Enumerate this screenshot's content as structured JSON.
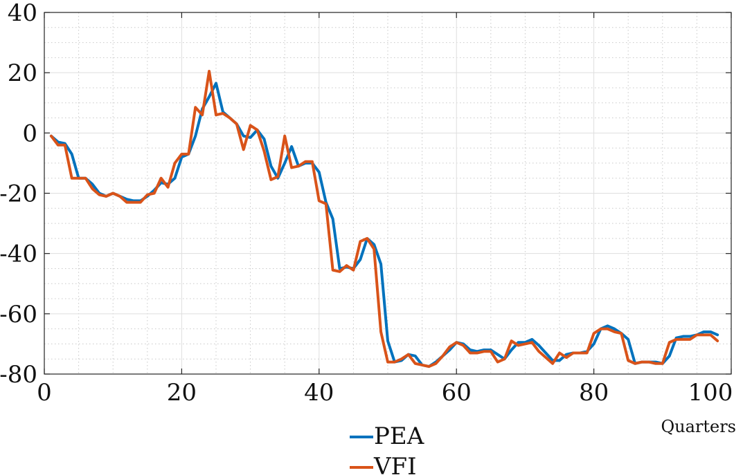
{
  "chart_data": {
    "type": "line",
    "xlabel": "Quarters",
    "ylabel": "",
    "xlim": [
      0,
      100
    ],
    "ylim": [
      -80,
      40
    ],
    "xticks": [
      0,
      20,
      40,
      60,
      80,
      100
    ],
    "yticks": [
      40,
      20,
      0,
      -20,
      -40,
      -60,
      -80
    ],
    "xtick_labels": [
      "0",
      "20",
      "40",
      "60",
      "80",
      "100"
    ],
    "ytick_labels": [
      "40",
      "20",
      "0",
      "-20",
      "-40",
      "-60",
      "-80"
    ],
    "grid": true,
    "legend_position": "bottom-center",
    "x": [
      1,
      2,
      3,
      4,
      5,
      6,
      7,
      8,
      9,
      10,
      11,
      12,
      13,
      14,
      15,
      16,
      17,
      18,
      19,
      20,
      21,
      22,
      23,
      24,
      25,
      26,
      27,
      28,
      29,
      30,
      31,
      32,
      33,
      34,
      35,
      36,
      37,
      38,
      39,
      40,
      41,
      42,
      43,
      44,
      45,
      46,
      47,
      48,
      49,
      50,
      51,
      52,
      53,
      54,
      55,
      56,
      57,
      58,
      59,
      60,
      61,
      62,
      63,
      64,
      65,
      66,
      67,
      68,
      69,
      70,
      71,
      72,
      73,
      74,
      75,
      76,
      77,
      78,
      79,
      80,
      81,
      82,
      83,
      84,
      85,
      86,
      87,
      88,
      89,
      90,
      91,
      92,
      93,
      94,
      95,
      96,
      97,
      98
    ],
    "series": [
      {
        "name": "PEA",
        "color": "#0072BD",
        "values": [
          -1,
          -3,
          -3.5,
          -7,
          -15,
          -15,
          -17,
          -20,
          -21,
          -20,
          -21,
          -22,
          -22.5,
          -22.5,
          -21,
          -19,
          -16.5,
          -17,
          -15,
          -8,
          -7,
          -1,
          8,
          12,
          16.5,
          7,
          5,
          3,
          -1,
          -1.5,
          1,
          -2,
          -11,
          -15,
          -10,
          -4.5,
          -11,
          -10,
          -10,
          -13,
          -23,
          -28.5,
          -45,
          -44.5,
          -45,
          -42,
          -35,
          -37,
          -43.5,
          -69,
          -76,
          -75.5,
          -73.5,
          -74,
          -77,
          -77.5,
          -76,
          -74,
          -72,
          -69.5,
          -70,
          -72,
          -72.5,
          -72,
          -72,
          -73.5,
          -75,
          -72,
          -69.5,
          -69.5,
          -68.5,
          -70.5,
          -73,
          -75.5,
          -75.5,
          -73.5,
          -73,
          -73,
          -72.5,
          -70,
          -65,
          -64,
          -65,
          -66.5,
          -68.5,
          -76.5,
          -76,
          -76,
          -76,
          -76.5,
          -74,
          -68,
          -67.5,
          -67.5,
          -67,
          -66,
          -66,
          -67
        ]
      },
      {
        "name": "VFI",
        "color": "#D95319",
        "values": [
          -1,
          -4,
          -4,
          -15,
          -15,
          -15,
          -18.5,
          -20.5,
          -21,
          -20,
          -21,
          -23,
          -23,
          -23,
          -20.5,
          -20,
          -15,
          -18,
          -10,
          -7,
          -7,
          8.5,
          6,
          20.5,
          6,
          6.5,
          5,
          3,
          -5.5,
          2.5,
          1,
          -6,
          -15.5,
          -14.5,
          -1,
          -11.5,
          -11,
          -9.5,
          -9.5,
          -22.5,
          -23.5,
          -45.5,
          -46,
          -44,
          -45.5,
          -36,
          -35,
          -38.5,
          -66,
          -76,
          -76,
          -75,
          -73.5,
          -76.5,
          -77,
          -77.5,
          -76.5,
          -74,
          -71,
          -69.5,
          -70.5,
          -73,
          -73,
          -72.5,
          -72.5,
          -76,
          -75,
          -69,
          -70.5,
          -70,
          -69.5,
          -72.5,
          -74.5,
          -76.5,
          -73,
          -74.5,
          -73,
          -73,
          -73,
          -66.5,
          -65,
          -65,
          -66,
          -66.5,
          -75.5,
          -76.5,
          -76,
          -76,
          -76.5,
          -76.5,
          -69.5,
          -68.5,
          -68.5,
          -68.5,
          -67,
          -67,
          -67,
          -69
        ]
      }
    ]
  }
}
